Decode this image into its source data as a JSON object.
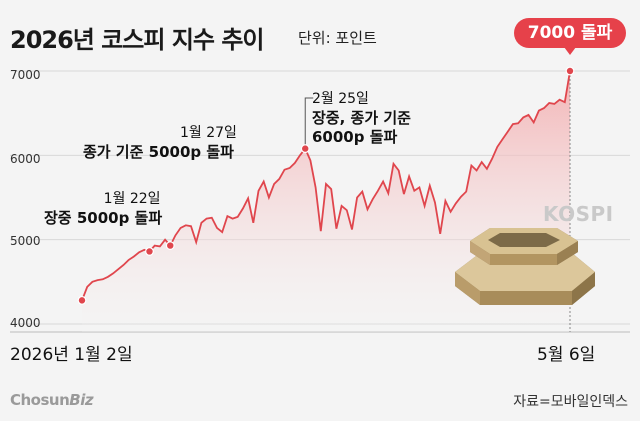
{
  "header": {
    "title": "2026년 코스피 지수 추이",
    "unit": "단위: 포인트"
  },
  "callout": {
    "text": "7000 돌파"
  },
  "series_label": "KOSPI",
  "logo": {
    "chosun": "Chosun",
    "biz": "Biz"
  },
  "source": "자료=모바일인덱스",
  "colors": {
    "line": "#e0464d",
    "marker": "#e0464d",
    "callout": "#e6414a",
    "fill_top": "#f2a5a6"
  },
  "chart_data": {
    "type": "area",
    "title": "2026년 코스피 지수 추이",
    "unit": "단위: 포인트",
    "ylim": [
      4000,
      7300
    ],
    "yticks": [
      "4000",
      "5000",
      "6000",
      "7000"
    ],
    "xtick_labels": [
      "2026년 1월 2일",
      "5월 6일"
    ],
    "grid": true,
    "series": [
      {
        "name": "KOSPI",
        "values": [
          4280,
          4440,
          4500,
          4520,
          4530,
          4560,
          4600,
          4650,
          4700,
          4760,
          4800,
          4850,
          4880,
          4860,
          4930,
          4920,
          5000,
          4930,
          5050,
          5140,
          5170,
          5160,
          4970,
          5200,
          5250,
          5260,
          5140,
          5090,
          5280,
          5250,
          5270,
          5370,
          5490,
          5200,
          5580,
          5690,
          5500,
          5660,
          5720,
          5830,
          5850,
          5910,
          6000,
          6080,
          5940,
          5620,
          5100,
          5660,
          5600,
          5130,
          5400,
          5350,
          5120,
          5500,
          5570,
          5360,
          5480,
          5580,
          5690,
          5550,
          5900,
          5820,
          5540,
          5750,
          5580,
          5620,
          5400,
          5640,
          5440,
          5070,
          5460,
          5330,
          5430,
          5510,
          5570,
          5880,
          5820,
          5920,
          5840,
          5960,
          6100,
          6190,
          6280,
          6370,
          6380,
          6450,
          6480,
          6390,
          6530,
          6560,
          6620,
          6610,
          6660,
          6630,
          7000
        ]
      }
    ],
    "annotations": [
      {
        "date": "1월 22일",
        "text": "장중 5000p 돌파"
      },
      {
        "date": "1월 27일",
        "text": "종가 기준 5000p 돌파"
      },
      {
        "date": "2월 25일",
        "text1": "장중, 종가 기준",
        "text2": "6000p 돌파"
      }
    ],
    "highlight": {
      "date": "5월 6일",
      "value": 7000,
      "text": "7000 돌파"
    }
  }
}
